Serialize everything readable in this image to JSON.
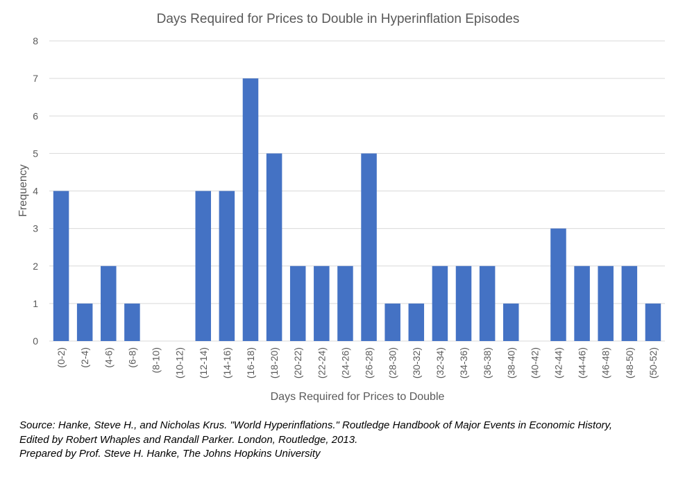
{
  "chart_data": {
    "type": "bar",
    "title": "Days Required for Prices to Double in Hyperinflation Episodes",
    "xlabel": "Days Required for Prices to Double",
    "ylabel": "Frequency",
    "ylim": [
      0,
      8
    ],
    "yticks": [
      "0",
      "1",
      "2",
      "3",
      "4",
      "5",
      "6",
      "7",
      "8"
    ],
    "grid": true,
    "categories": [
      "(0-2)",
      "(2-4)",
      "(4-6)",
      "(6-8)",
      "(8-10)",
      "(10-12)",
      "(12-14)",
      "(14-16)",
      "(16-18)",
      "(18-20)",
      "(20-22)",
      "(22-24)",
      "(24-26)",
      "(26-28)",
      "(28-30)",
      "(30-32)",
      "(32-34)",
      "(34-36)",
      "(36-38)",
      "(38-40)",
      "(40-42)",
      "(42-44)",
      "(44-46)",
      "(46-48)",
      "(48-50)",
      "(50-52)"
    ],
    "values": [
      4,
      1,
      2,
      1,
      0,
      0,
      4,
      4,
      7,
      5,
      2,
      2,
      2,
      5,
      1,
      1,
      2,
      2,
      2,
      1,
      0,
      3,
      2,
      2,
      2,
      1
    ],
    "bar_color": "#4472C4",
    "grid_color": "#D9D9D9",
    "text_color": "#595959"
  },
  "notes": {
    "line1": "Source: Hanke, Steve H., and Nicholas Krus. \"World Hyperinflations.\" Routledge Handbook of Major Events in Economic History,",
    "line2": "Edited by Robert Whaples and Randall Parker. London, Routledge, 2013.",
    "line3": "Prepared by Prof. Steve H. Hanke, The Johns Hopkins University"
  }
}
